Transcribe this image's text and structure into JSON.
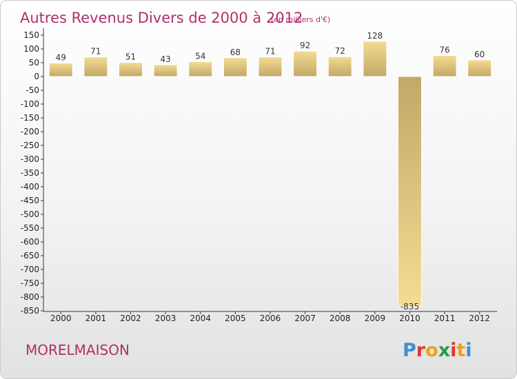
{
  "chart_data": {
    "type": "bar",
    "title": "Autres Revenus Divers de 2000 à 2012",
    "subtitle": "(en milliers d'€)",
    "categories": [
      "2000",
      "2001",
      "2002",
      "2003",
      "2004",
      "2005",
      "2006",
      "2007",
      "2008",
      "2009",
      "2010",
      "2011",
      "2012"
    ],
    "values": [
      49,
      71,
      51,
      43,
      54,
      68,
      71,
      92,
      72,
      128,
      -835,
      76,
      60
    ],
    "data_labels": [
      "49",
      "71",
      "51",
      "43",
      "54",
      "68",
      "71",
      "92",
      "72",
      "128",
      "-835",
      "76",
      "60"
    ],
    "ylim": [
      -850,
      150
    ],
    "yticks": [
      150,
      100,
      50,
      0,
      -50,
      -100,
      -150,
      -200,
      -250,
      -300,
      -350,
      -400,
      -450,
      -500,
      -550,
      -600,
      -650,
      -700,
      -750,
      -800,
      -850
    ],
    "grid": false,
    "legend": "none",
    "bar_color_light": "#f5dc93",
    "bar_color_dark": "#c2a867"
  },
  "footer": {
    "commune": "MORELMAISON",
    "logo_letters": [
      "P",
      "r",
      "o",
      "x",
      "i",
      "t",
      "i"
    ],
    "logo_colors": [
      "#3e8fd0",
      "#e0392b",
      "#f0a020",
      "#2a9a48",
      "#e0392b",
      "#f0a020",
      "#3e8fd0"
    ]
  }
}
